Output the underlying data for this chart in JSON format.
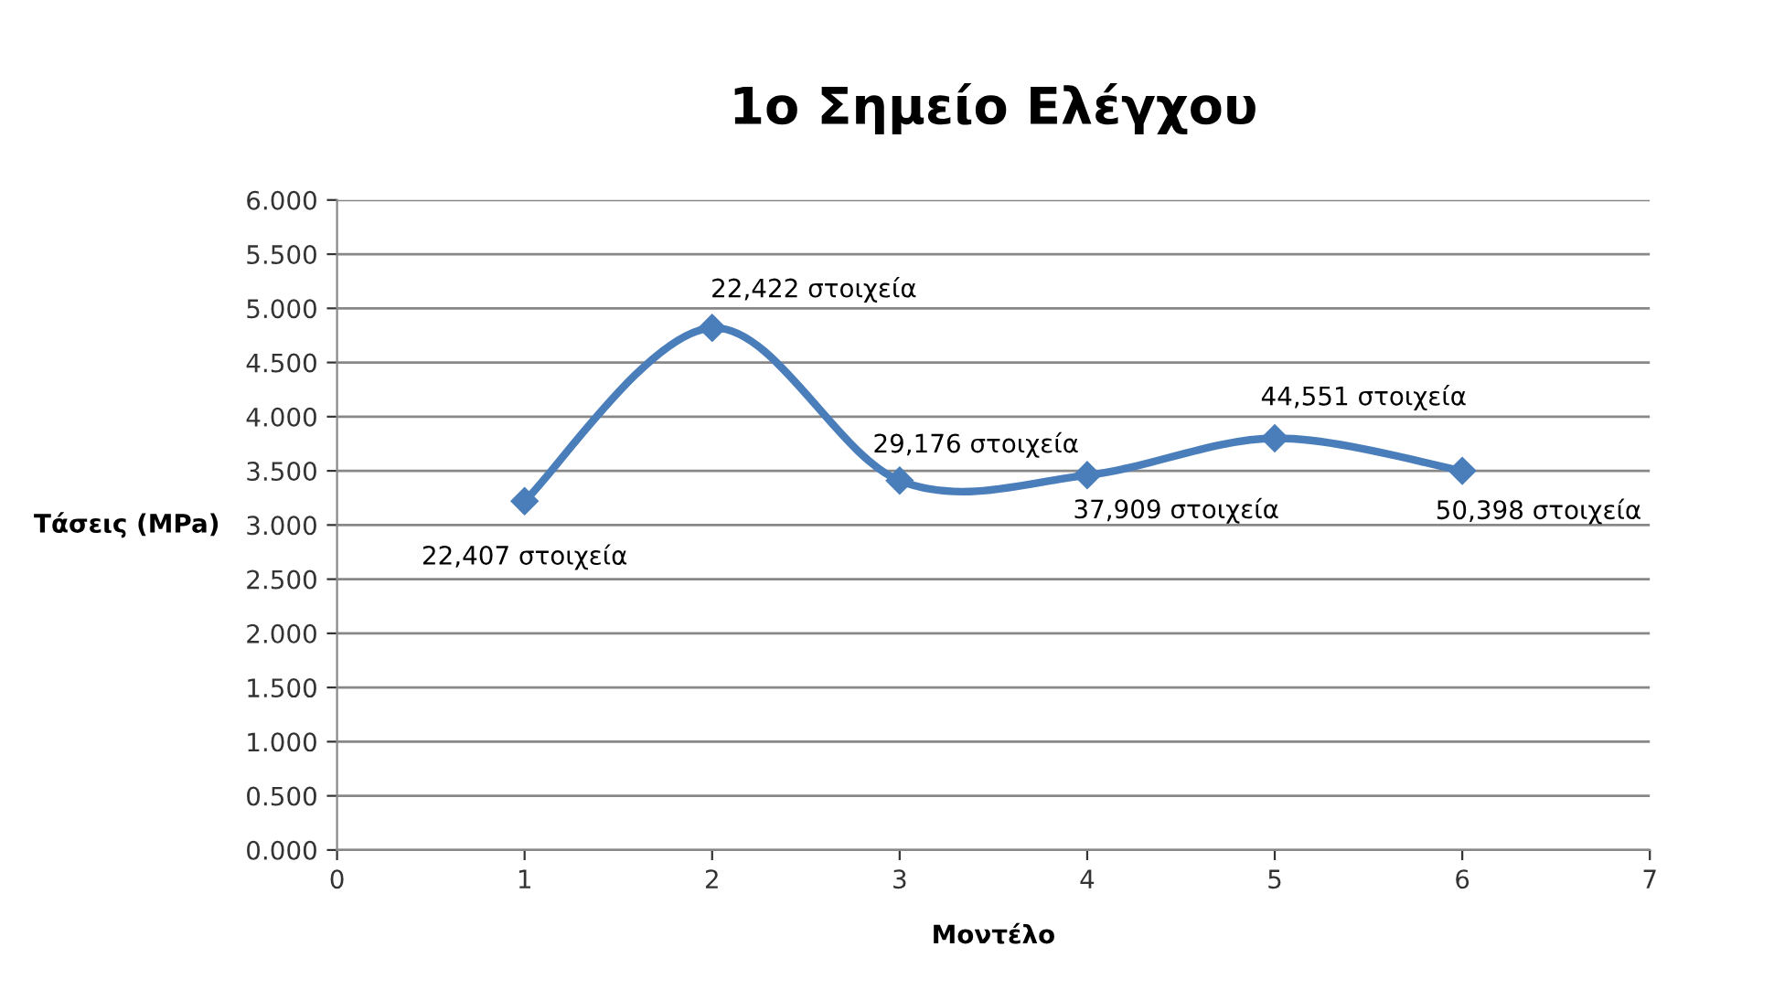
{
  "chart_data": {
    "type": "line",
    "title": "1ο Σημείο Ελέγχου",
    "xlabel": "Μοντέλο",
    "ylabel": "Τάσεις (MPa)",
    "x": [
      1,
      2,
      3,
      4,
      5,
      6
    ],
    "series": [
      {
        "color": "#4a7ebb",
        "values": [
          3.22,
          4.82,
          3.41,
          3.46,
          3.8,
          3.5
        ]
      }
    ],
    "xlim": [
      0,
      7
    ],
    "xticks": [
      0,
      1,
      2,
      3,
      4,
      5,
      6,
      7
    ],
    "ylim": [
      0,
      6
    ],
    "yticks": [
      {
        "value": 0,
        "label": "0.000"
      },
      {
        "value": 0.5,
        "label": "0.500"
      },
      {
        "value": 1,
        "label": "1.000"
      },
      {
        "value": 1.5,
        "label": "1.500"
      },
      {
        "value": 2,
        "label": "2.000"
      },
      {
        "value": 2.5,
        "label": "2.500"
      },
      {
        "value": 3,
        "label": "3.000"
      },
      {
        "value": 3.5,
        "label": "3.500"
      },
      {
        "value": 4,
        "label": "4.000"
      },
      {
        "value": 4.5,
        "label": "4.500"
      },
      {
        "value": 5,
        "label": "5.000"
      },
      {
        "value": 5.5,
        "label": "5.500"
      },
      {
        "value": 6,
        "label": "6.000"
      }
    ],
    "grid": "y",
    "legend": false,
    "marker": "diamond",
    "line_style": "solid",
    "annotations": [
      {
        "text": "22,407 στοιχεία",
        "x": 1,
        "y": 3.22
      },
      {
        "text": "22,422 στοιχεία",
        "x": 2,
        "y": 4.82
      },
      {
        "text": "29,176 στοιχεία",
        "x": 3,
        "y": 3.41
      },
      {
        "text": "37,909 στοιχεία",
        "x": 4,
        "y": 3.46
      },
      {
        "text": "44,551 στοιχεία",
        "x": 5,
        "y": 3.8
      },
      {
        "text": "50,398 στοιχεία",
        "x": 6,
        "y": 3.5
      }
    ]
  }
}
